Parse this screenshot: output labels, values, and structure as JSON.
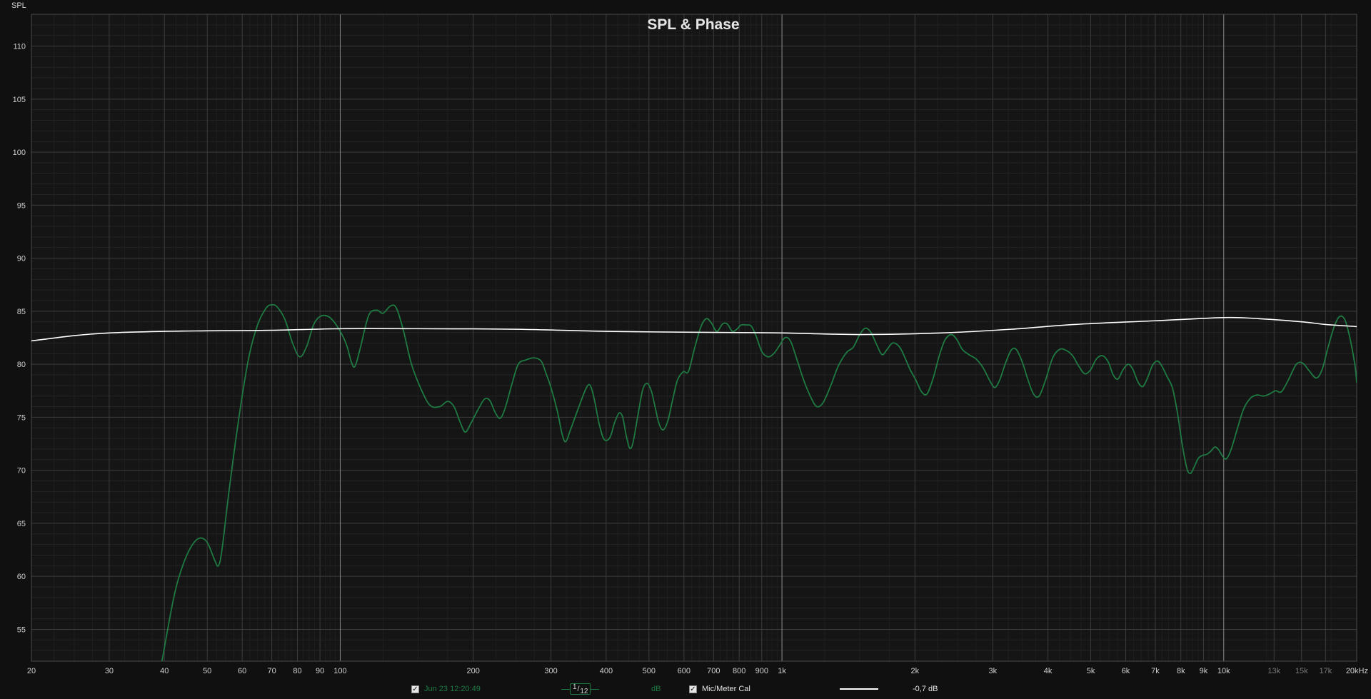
{
  "chart_data": {
    "type": "line",
    "title": "SPL & Phase",
    "ylabel": "SPL",
    "xlabel": "",
    "x_scale": "log",
    "xlim": [
      20,
      20000
    ],
    "ylim": [
      52,
      113
    ],
    "y_ticks": [
      55,
      60,
      65,
      70,
      75,
      80,
      85,
      90,
      95,
      100,
      105,
      110
    ],
    "x_ticks": [
      {
        "v": 20,
        "label": "20"
      },
      {
        "v": 30,
        "label": "30"
      },
      {
        "v": 40,
        "label": "40"
      },
      {
        "v": 50,
        "label": "50"
      },
      {
        "v": 60,
        "label": "60"
      },
      {
        "v": 70,
        "label": "70"
      },
      {
        "v": 80,
        "label": "80"
      },
      {
        "v": 90,
        "label": "90"
      },
      {
        "v": 100,
        "label": "100"
      },
      {
        "v": 200,
        "label": "200"
      },
      {
        "v": 300,
        "label": "300"
      },
      {
        "v": 400,
        "label": "400"
      },
      {
        "v": 500,
        "label": "500"
      },
      {
        "v": 600,
        "label": "600"
      },
      {
        "v": 700,
        "label": "700"
      },
      {
        "v": 800,
        "label": "800"
      },
      {
        "v": 900,
        "label": "900"
      },
      {
        "v": 1000,
        "label": "1k"
      },
      {
        "v": 2000,
        "label": "2k"
      },
      {
        "v": 3000,
        "label": "3k"
      },
      {
        "v": 4000,
        "label": "4k"
      },
      {
        "v": 5000,
        "label": "5k"
      },
      {
        "v": 6000,
        "label": "6k"
      },
      {
        "v": 7000,
        "label": "7k"
      },
      {
        "v": 8000,
        "label": "8k"
      },
      {
        "v": 9000,
        "label": "9k"
      },
      {
        "v": 10000,
        "label": "10k"
      },
      {
        "v": 13000,
        "label": "13k",
        "dim": true
      },
      {
        "v": 15000,
        "label": "15k",
        "dim": true
      },
      {
        "v": 17000,
        "label": "17k",
        "dim": true
      },
      {
        "v": 20000,
        "label": "20kHz"
      }
    ],
    "grid": true,
    "series": [
      {
        "name": "Jun 23 12:20:49",
        "color": "#1e7a42",
        "points": [
          [
            39.5,
            52
          ],
          [
            42,
            58
          ],
          [
            44,
            61
          ],
          [
            46,
            62.8
          ],
          [
            48,
            63.6
          ],
          [
            50,
            63.2
          ],
          [
            52,
            61.5
          ],
          [
            53,
            61
          ],
          [
            54,
            62.5
          ],
          [
            56,
            68
          ],
          [
            59,
            75
          ],
          [
            62,
            80.5
          ],
          [
            65,
            83.7
          ],
          [
            68,
            85.3
          ],
          [
            70,
            85.6
          ],
          [
            72,
            85.4
          ],
          [
            75,
            84.2
          ],
          [
            78,
            82
          ],
          [
            81,
            80.7
          ],
          [
            84,
            81.7
          ],
          [
            87,
            83.7
          ],
          [
            90,
            84.5
          ],
          [
            94,
            84.5
          ],
          [
            98,
            83.7
          ],
          [
            103,
            82
          ],
          [
            106,
            80.2
          ],
          [
            108,
            79.8
          ],
          [
            111,
            81.5
          ],
          [
            116,
            84.6
          ],
          [
            121,
            85.1
          ],
          [
            125,
            84.8
          ],
          [
            130,
            85.5
          ],
          [
            134,
            85.3
          ],
          [
            139,
            83.2
          ],
          [
            145,
            80
          ],
          [
            153,
            77.5
          ],
          [
            160,
            76.1
          ],
          [
            168,
            76
          ],
          [
            175,
            76.5
          ],
          [
            181,
            76
          ],
          [
            187,
            74.5
          ],
          [
            192,
            73.6
          ],
          [
            198,
            74.5
          ],
          [
            205,
            75.7
          ],
          [
            212,
            76.7
          ],
          [
            218,
            76.6
          ],
          [
            224,
            75.5
          ],
          [
            230,
            74.9
          ],
          [
            236,
            75.8
          ],
          [
            245,
            78.2
          ],
          [
            253,
            80
          ],
          [
            263,
            80.4
          ],
          [
            275,
            80.6
          ],
          [
            285,
            80.3
          ],
          [
            292,
            79.2
          ],
          [
            300,
            77.8
          ],
          [
            310,
            75.6
          ],
          [
            318,
            73.4
          ],
          [
            324,
            72.7
          ],
          [
            332,
            73.8
          ],
          [
            345,
            75.7
          ],
          [
            360,
            77.7
          ],
          [
            368,
            78
          ],
          [
            376,
            76.7
          ],
          [
            386,
            74.3
          ],
          [
            396,
            72.9
          ],
          [
            408,
            73.1
          ],
          [
            418,
            74.5
          ],
          [
            428,
            75.4
          ],
          [
            436,
            75
          ],
          [
            444,
            73.3
          ],
          [
            452,
            72.1
          ],
          [
            460,
            72.6
          ],
          [
            472,
            75.2
          ],
          [
            484,
            77.6
          ],
          [
            495,
            78.2
          ],
          [
            506,
            77.5
          ],
          [
            516,
            76
          ],
          [
            526,
            74.5
          ],
          [
            538,
            73.8
          ],
          [
            552,
            74.7
          ],
          [
            566,
            76.7
          ],
          [
            580,
            78.5
          ],
          [
            598,
            79.3
          ],
          [
            614,
            79.3
          ],
          [
            634,
            81.5
          ],
          [
            655,
            83.5
          ],
          [
            674,
            84.3
          ],
          [
            692,
            83.9
          ],
          [
            712,
            83.1
          ],
          [
            734,
            83.8
          ],
          [
            752,
            83.8
          ],
          [
            772,
            83.1
          ],
          [
            790,
            83.3
          ],
          [
            808,
            83.7
          ],
          [
            830,
            83.7
          ],
          [
            852,
            83.6
          ],
          [
            875,
            82.6
          ],
          [
            900,
            81.2
          ],
          [
            930,
            80.7
          ],
          [
            958,
            81
          ],
          [
            985,
            81.7
          ],
          [
            1015,
            82.5
          ],
          [
            1045,
            82.2
          ],
          [
            1080,
            80.5
          ],
          [
            1120,
            78.5
          ],
          [
            1165,
            76.8
          ],
          [
            1200,
            76
          ],
          [
            1240,
            76.4
          ],
          [
            1290,
            78
          ],
          [
            1340,
            79.8
          ],
          [
            1400,
            81.1
          ],
          [
            1450,
            81.6
          ],
          [
            1500,
            82.8
          ],
          [
            1545,
            83.4
          ],
          [
            1590,
            83
          ],
          [
            1640,
            81.8
          ],
          [
            1685,
            80.9
          ],
          [
            1730,
            81.4
          ],
          [
            1780,
            82
          ],
          [
            1840,
            81.7
          ],
          [
            1890,
            80.8
          ],
          [
            1950,
            79.5
          ],
          [
            2010,
            78.5
          ],
          [
            2070,
            77.4
          ],
          [
            2130,
            77.2
          ],
          [
            2200,
            78.7
          ],
          [
            2270,
            80.8
          ],
          [
            2340,
            82.3
          ],
          [
            2420,
            82.8
          ],
          [
            2490,
            82.3
          ],
          [
            2560,
            81.4
          ],
          [
            2650,
            80.9
          ],
          [
            2750,
            80.5
          ],
          [
            2850,
            79.7
          ],
          [
            2950,
            78.5
          ],
          [
            3030,
            77.8
          ],
          [
            3110,
            78.5
          ],
          [
            3200,
            80
          ],
          [
            3300,
            81.3
          ],
          [
            3390,
            81.4
          ],
          [
            3500,
            80.2
          ],
          [
            3600,
            78.6
          ],
          [
            3710,
            77.2
          ],
          [
            3820,
            77
          ],
          [
            3950,
            78.5
          ],
          [
            4100,
            80.6
          ],
          [
            4250,
            81.4
          ],
          [
            4400,
            81.3
          ],
          [
            4550,
            80.8
          ],
          [
            4700,
            79.8
          ],
          [
            4850,
            79.1
          ],
          [
            5000,
            79.5
          ],
          [
            5150,
            80.5
          ],
          [
            5320,
            80.8
          ],
          [
            5480,
            80.2
          ],
          [
            5620,
            79
          ],
          [
            5760,
            78.6
          ],
          [
            5920,
            79.5
          ],
          [
            6080,
            80
          ],
          [
            6230,
            79.5
          ],
          [
            6400,
            78.3
          ],
          [
            6560,
            77.9
          ],
          [
            6720,
            78.7
          ],
          [
            6900,
            79.9
          ],
          [
            7080,
            80.3
          ],
          [
            7250,
            79.8
          ],
          [
            7450,
            78.8
          ],
          [
            7650,
            77.8
          ],
          [
            7850,
            75.5
          ],
          [
            8050,
            72.5
          ],
          [
            8250,
            70.2
          ],
          [
            8400,
            69.7
          ],
          [
            8550,
            70.2
          ],
          [
            8750,
            71.1
          ],
          [
            8950,
            71.4
          ],
          [
            9150,
            71.5
          ],
          [
            9350,
            71.8
          ],
          [
            9550,
            72.2
          ],
          [
            9750,
            71.9
          ],
          [
            9950,
            71.3
          ],
          [
            10150,
            71.1
          ],
          [
            10400,
            72
          ],
          [
            10750,
            74
          ],
          [
            11100,
            75.8
          ],
          [
            11500,
            76.8
          ],
          [
            11900,
            77.1
          ],
          [
            12300,
            77
          ],
          [
            12700,
            77.2
          ],
          [
            13100,
            77.5
          ],
          [
            13500,
            77.4
          ],
          [
            14000,
            78.5
          ],
          [
            14600,
            80
          ],
          [
            15100,
            80.1
          ],
          [
            15600,
            79.4
          ],
          [
            16200,
            78.7
          ],
          [
            16700,
            79.5
          ],
          [
            17200,
            81.5
          ],
          [
            17800,
            83.6
          ],
          [
            18300,
            84.5
          ],
          [
            18800,
            84.2
          ],
          [
            19300,
            82.5
          ],
          [
            19800,
            80
          ],
          [
            20000,
            78.3
          ]
        ]
      },
      {
        "name": "Mic/Meter Cal",
        "color": "#ffffff",
        "points": [
          [
            20,
            82.2
          ],
          [
            25,
            82.7
          ],
          [
            30,
            82.95
          ],
          [
            40,
            83.1
          ],
          [
            50,
            83.15
          ],
          [
            70,
            83.2
          ],
          [
            100,
            83.35
          ],
          [
            150,
            83.35
          ],
          [
            250,
            83.3
          ],
          [
            400,
            83.1
          ],
          [
            700,
            83
          ],
          [
            1000,
            82.95
          ],
          [
            1500,
            82.8
          ],
          [
            2300,
            82.95
          ],
          [
            3300,
            83.3
          ],
          [
            4600,
            83.75
          ],
          [
            7000,
            84.1
          ],
          [
            10000,
            84.4
          ],
          [
            12000,
            84.3
          ],
          [
            15000,
            84.0
          ],
          [
            17000,
            83.75
          ],
          [
            20000,
            83.55
          ]
        ]
      }
    ]
  },
  "legend": {
    "measurement": {
      "checked": true,
      "checkbox": "✓",
      "label": "Jun 23 12:20:49",
      "smoothing_num": "1",
      "smoothing_den": "12",
      "unit": "dB",
      "color": "#1e7a42"
    },
    "calibration": {
      "checked": true,
      "checkbox": "✓",
      "label": "Mic/Meter Cal",
      "value": "-0,7 dB",
      "color": "#ffffff"
    }
  }
}
